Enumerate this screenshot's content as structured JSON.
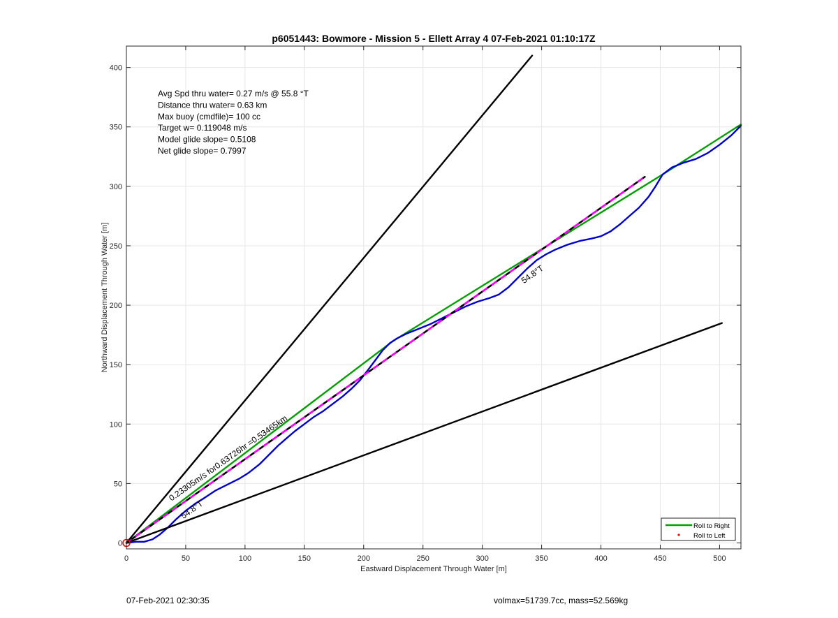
{
  "chart_data": {
    "type": "line",
    "title": "p6051443: Bowmore - Mission 5 - Ellett Array 4 07-Feb-2021 01:10:17Z",
    "xlabel": "Eastward Displacement Through Water [m]",
    "ylabel": "Northward Displacement Through Water [m]",
    "xlim": [
      0,
      518
    ],
    "ylim": [
      -5,
      418
    ],
    "xticks": [
      0,
      50,
      100,
      150,
      200,
      250,
      300,
      350,
      400,
      450,
      500
    ],
    "yticks": [
      0,
      50,
      100,
      150,
      200,
      250,
      300,
      350,
      400
    ],
    "grid": true,
    "legend_position": "bottom-right",
    "legend": [
      {
        "label": "Roll to Right",
        "color": "#00a000",
        "style": "line"
      },
      {
        "label": "Roll to Left",
        "color": "#ff0000",
        "style": "dot"
      }
    ],
    "info_text": [
      "Avg Spd thru water=  0.27 m/s @  55.8 °T",
      "Distance thru water=  0.63 km",
      "Max buoy (cmdfile)= 100 cc",
      "Target w= 0.119048 m/s",
      "Model glide slope= 0.5108",
      "Net glide slope= 0.7997"
    ],
    "annotations": [
      {
        "text": "0.23305m/s for0.63726hr =0.53465km",
        "x": 38,
        "y": 35,
        "angle_deg": 35.1
      },
      {
        "text": "54.8°T",
        "x": 48,
        "y": 20,
        "angle_deg": 35.2
      },
      {
        "text": "54.8°T",
        "x": 335,
        "y": 218,
        "angle_deg": 35.2
      }
    ],
    "series": [
      {
        "name": "Roll to Right",
        "color": "#00a000",
        "points": [
          [
            0,
            0
          ],
          [
            225,
            170
          ],
          [
            452,
            310
          ],
          [
            518,
            352
          ]
        ]
      },
      {
        "color": "#0000cc",
        "points": [
          [
            0,
            0
          ],
          [
            8,
            1
          ],
          [
            15,
            1
          ],
          [
            22,
            3
          ],
          [
            28,
            7
          ],
          [
            35,
            13
          ],
          [
            42,
            20
          ],
          [
            50,
            27
          ],
          [
            58,
            33
          ],
          [
            66,
            38
          ],
          [
            75,
            44
          ],
          [
            85,
            49
          ],
          [
            95,
            54
          ],
          [
            103,
            59
          ],
          [
            112,
            66
          ],
          [
            120,
            74
          ],
          [
            128,
            82
          ],
          [
            135,
            88
          ],
          [
            142,
            94
          ],
          [
            150,
            100
          ],
          [
            158,
            106
          ],
          [
            166,
            111
          ],
          [
            174,
            117
          ],
          [
            182,
            123
          ],
          [
            190,
            130
          ],
          [
            197,
            137
          ],
          [
            204,
            146
          ],
          [
            210,
            154
          ],
          [
            216,
            162
          ],
          [
            222,
            168
          ],
          [
            228,
            172
          ],
          [
            236,
            176
          ],
          [
            246,
            180
          ],
          [
            256,
            184
          ],
          [
            266,
            189
          ],
          [
            276,
            194
          ],
          [
            286,
            199
          ],
          [
            296,
            203
          ],
          [
            306,
            206
          ],
          [
            314,
            209
          ],
          [
            322,
            215
          ],
          [
            330,
            223
          ],
          [
            338,
            231
          ],
          [
            346,
            238
          ],
          [
            354,
            243
          ],
          [
            362,
            247
          ],
          [
            372,
            251
          ],
          [
            382,
            254
          ],
          [
            392,
            256
          ],
          [
            400,
            258
          ],
          [
            408,
            262
          ],
          [
            416,
            268
          ],
          [
            424,
            275
          ],
          [
            432,
            282
          ],
          [
            440,
            291
          ],
          [
            446,
            300
          ],
          [
            452,
            310
          ],
          [
            460,
            316
          ],
          [
            470,
            320
          ],
          [
            480,
            323
          ],
          [
            490,
            328
          ],
          [
            500,
            335
          ],
          [
            510,
            343
          ],
          [
            518,
            351
          ]
        ]
      },
      {
        "color": "#000000",
        "points": [
          [
            0,
            0
          ],
          [
            437,
            308
          ]
        ],
        "style": "dashed"
      },
      {
        "color": "#ff00ff",
        "points": [
          [
            0,
            0
          ],
          [
            437,
            308
          ]
        ],
        "style": "dashed-overlay"
      },
      {
        "color": "#000000",
        "points": [
          [
            0,
            0
          ],
          [
            342,
            410
          ]
        ]
      },
      {
        "color": "#000000",
        "points": [
          [
            0,
            0
          ],
          [
            502,
            185
          ]
        ]
      }
    ],
    "markers": [
      {
        "shape": "circle",
        "color": "#ff0000",
        "x": 0,
        "y": 0
      }
    ]
  },
  "footer": {
    "left": "07-Feb-2021 02:30:35",
    "right": "volmax=51739.7cc, mass=52.569kg"
  }
}
